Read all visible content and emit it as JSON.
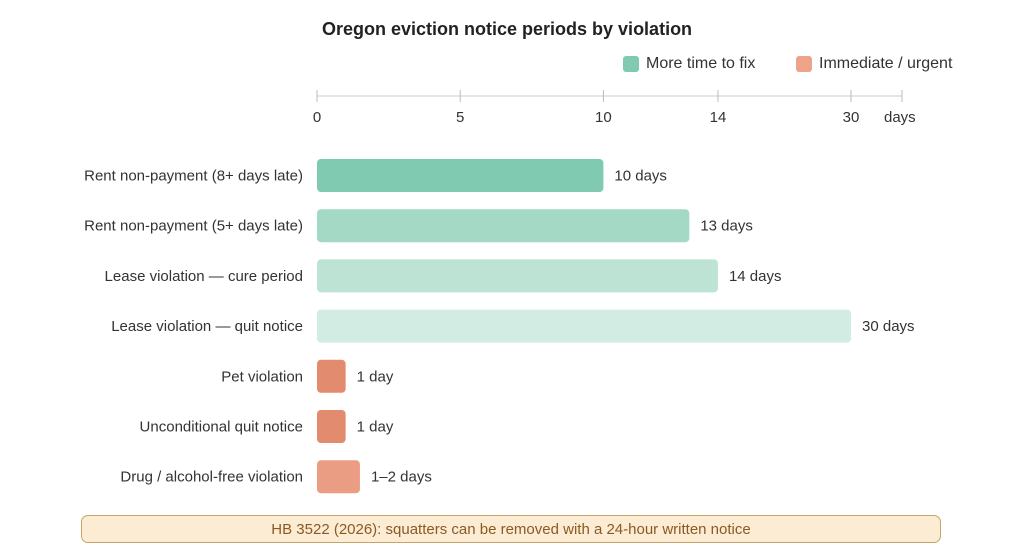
{
  "chart_data": {
    "type": "bar",
    "orientation": "horizontal",
    "title": "Oregon eviction notice periods by violation",
    "axis_unit_label": "days",
    "x_ticks": [
      "0",
      "5",
      "10",
      "14",
      "30"
    ],
    "legend": [
      {
        "name": "More time to fix",
        "color": "#7fcab0"
      },
      {
        "name": "Immediate / urgent",
        "color": "#eda48a"
      }
    ],
    "legend_position": "top-right",
    "categories": [
      "Rent non-payment (8+ days late)",
      "Rent non-payment (5+ days late)",
      "Lease violation — cure period",
      "Lease violation — quit notice",
      "Pet violation",
      "Unconditional quit notice",
      "Drug / alcohol-free violation"
    ],
    "values": [
      10,
      13,
      14,
      30,
      1,
      1,
      1.5
    ],
    "value_labels": [
      "10 days",
      "13 days",
      "14 days",
      "30 days",
      "1 day",
      "1 day",
      "1–2 days"
    ],
    "groups": [
      "More time to fix",
      "More time to fix",
      "More time to fix",
      "More time to fix",
      "Immediate / urgent",
      "Immediate / urgent",
      "Immediate / urgent"
    ],
    "bar_colors": [
      "#7fcab0",
      "#a4d9c6",
      "#bde3d5",
      "#d3ece3",
      "#e38b6e",
      "#e38b6e",
      "#eb9d83"
    ],
    "grid": false
  },
  "note": "HB 3522 (2026): squatters can be removed with a 24-hour written notice"
}
